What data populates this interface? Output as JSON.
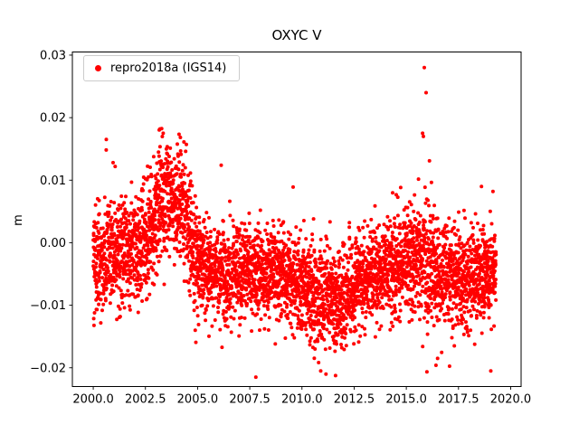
{
  "chart_data": {
    "type": "scatter",
    "title": "OXYC V",
    "xlabel": "",
    "ylabel": "m",
    "xlim": [
      1999.0,
      2020.5
    ],
    "ylim": [
      -0.023,
      0.0305
    ],
    "grid": false,
    "x_ticks": [
      2000.0,
      2002.5,
      2005.0,
      2007.5,
      2010.0,
      2012.5,
      2015.0,
      2017.5,
      2020.0
    ],
    "x_tick_labels": [
      "2000.0",
      "2002.5",
      "2005.0",
      "2007.5",
      "2010.0",
      "2012.5",
      "2015.0",
      "2017.5",
      "2020.0"
    ],
    "y_ticks": [
      -0.02,
      -0.01,
      0.0,
      0.01,
      0.02,
      0.03
    ],
    "y_tick_labels": [
      "−0.02",
      "−0.01",
      "0.00",
      "0.01",
      "0.02",
      "0.03"
    ],
    "legend": {
      "position": "upper left",
      "entries": [
        {
          "label": "repro2018a (IGS14)",
          "color": "#ff0000",
          "marker": "circle"
        }
      ]
    },
    "series": [
      {
        "name": "repro2018a (IGS14)",
        "color": "#ff0000",
        "marker_size": 2.0,
        "n_points": 4500,
        "seed": 42,
        "t_range": [
          2000.0,
          2019.3
        ],
        "tail_prob": 0.012,
        "clamp": [
          -0.0215,
          0.0185
        ],
        "mean_trend": [
          [
            2000.0,
            -0.003
          ],
          [
            2001.0,
            -0.002
          ],
          [
            2002.0,
            -0.002
          ],
          [
            2002.6,
            0.001
          ],
          [
            2003.2,
            0.007
          ],
          [
            2003.8,
            0.007
          ],
          [
            2004.4,
            0.005
          ],
          [
            2004.9,
            -0.003
          ],
          [
            2005.5,
            -0.005
          ],
          [
            2007.0,
            -0.0045
          ],
          [
            2009.0,
            -0.005
          ],
          [
            2010.0,
            -0.007
          ],
          [
            2011.0,
            -0.0095
          ],
          [
            2011.8,
            -0.009
          ],
          [
            2012.5,
            -0.007
          ],
          [
            2013.5,
            -0.005
          ],
          [
            2014.5,
            -0.0035
          ],
          [
            2015.3,
            -0.002
          ],
          [
            2016.0,
            -0.003
          ],
          [
            2016.8,
            -0.005
          ],
          [
            2018.0,
            -0.005
          ],
          [
            2019.3,
            -0.0045
          ]
        ],
        "std_trend": [
          [
            2000.0,
            0.0045
          ],
          [
            2002.0,
            0.0042
          ],
          [
            2003.2,
            0.005
          ],
          [
            2004.4,
            0.0048
          ],
          [
            2005.5,
            0.0035
          ],
          [
            2009.0,
            0.0035
          ],
          [
            2011.0,
            0.0042
          ],
          [
            2013.0,
            0.0036
          ],
          [
            2015.0,
            0.0042
          ],
          [
            2016.0,
            0.005
          ],
          [
            2017.0,
            0.004
          ],
          [
            2019.3,
            0.004
          ]
        ],
        "outliers": [
          [
            2000.95,
            0.0128
          ],
          [
            2001.05,
            0.0122
          ],
          [
            2003.2,
            0.0182
          ],
          [
            2003.35,
            0.0175
          ],
          [
            2010.9,
            -0.0205
          ],
          [
            2011.15,
            -0.021
          ],
          [
            2015.78,
            0.0175
          ],
          [
            2015.82,
            0.017
          ],
          [
            2015.86,
            0.028
          ],
          [
            2015.95,
            0.024
          ],
          [
            2016.42,
            -0.0196
          ],
          [
            2016.5,
            -0.0185
          ],
          [
            2017.3,
            -0.0165
          ],
          [
            2018.6,
            0.009
          ],
          [
            2019.05,
            -0.0205
          ],
          [
            2019.15,
            0.0082
          ]
        ]
      }
    ]
  }
}
